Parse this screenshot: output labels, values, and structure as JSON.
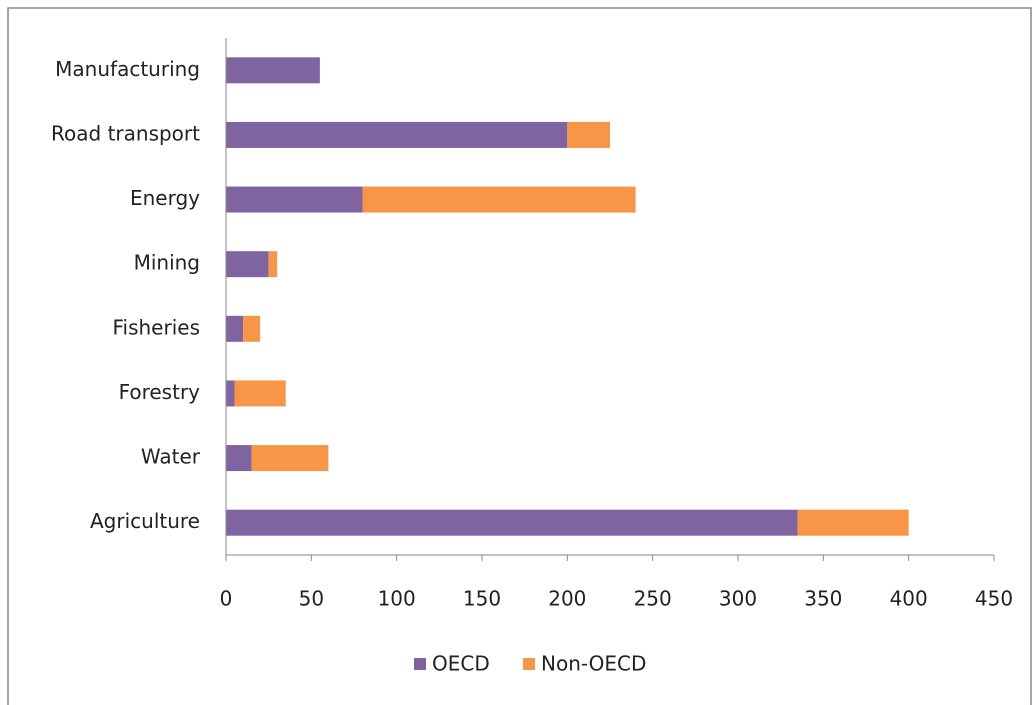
{
  "chart_data": {
    "type": "stacked_bar_horizontal",
    "categories": [
      "Manufacturing",
      "Road transport",
      "Energy",
      "Mining",
      "Fisheries",
      "Forestry",
      "Water",
      "Agriculture"
    ],
    "series": [
      {
        "name": "OECD",
        "color": "#8064a2",
        "values": [
          55,
          200,
          80,
          25,
          10,
          5,
          15,
          335
        ]
      },
      {
        "name": "Non-OECD",
        "color": "#f79646",
        "values": [
          0,
          25,
          160,
          5,
          10,
          30,
          45,
          65
        ]
      }
    ],
    "xlim": [
      0,
      450
    ],
    "xticks": [
      0,
      50,
      100,
      150,
      200,
      250,
      300,
      350,
      400,
      450
    ],
    "grid": false,
    "legend": "bottom"
  }
}
